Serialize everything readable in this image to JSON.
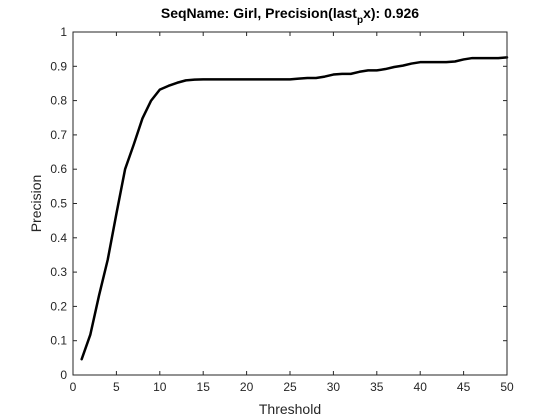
{
  "chart_data": {
    "type": "line",
    "title": {
      "prefix": "SeqName: Girl, Precision(last",
      "subscript": "p",
      "suffix": "x): 0.926"
    },
    "xlabel": "Threshold",
    "ylabel": "Precision",
    "xlim": [
      0,
      50
    ],
    "ylim": [
      0,
      1
    ],
    "xticks": [
      0,
      5,
      10,
      15,
      20,
      25,
      30,
      35,
      40,
      45,
      50
    ],
    "xtick_labels": [
      "0",
      "5",
      "10",
      "15",
      "20",
      "25",
      "30",
      "35",
      "40",
      "45",
      "50"
    ],
    "yticks": [
      0,
      0.1,
      0.2,
      0.3,
      0.4,
      0.5,
      0.6,
      0.7,
      0.8,
      0.9,
      1
    ],
    "ytick_labels": [
      "0",
      "0.1",
      "0.2",
      "0.3",
      "0.4",
      "0.5",
      "0.6",
      "0.7",
      "0.8",
      "0.9",
      "1"
    ],
    "grid": false,
    "line_color": "#000000",
    "x": [
      1,
      2,
      3,
      4,
      5,
      6,
      7,
      8,
      9,
      10,
      11,
      12,
      13,
      14,
      15,
      16,
      17,
      18,
      19,
      20,
      21,
      22,
      23,
      24,
      25,
      26,
      27,
      28,
      29,
      30,
      31,
      32,
      33,
      34,
      35,
      36,
      37,
      38,
      39,
      40,
      41,
      42,
      43,
      44,
      45,
      46,
      47,
      48,
      49,
      50
    ],
    "y": [
      0.046,
      0.118,
      0.232,
      0.336,
      0.47,
      0.6,
      0.672,
      0.748,
      0.8,
      0.832,
      0.843,
      0.852,
      0.859,
      0.861,
      0.862,
      0.862,
      0.862,
      0.862,
      0.862,
      0.862,
      0.862,
      0.862,
      0.862,
      0.862,
      0.862,
      0.864,
      0.866,
      0.866,
      0.87,
      0.876,
      0.878,
      0.878,
      0.884,
      0.888,
      0.888,
      0.892,
      0.898,
      0.902,
      0.908,
      0.912,
      0.912,
      0.912,
      0.912,
      0.914,
      0.92,
      0.924,
      0.924,
      0.924,
      0.924,
      0.926
    ]
  }
}
